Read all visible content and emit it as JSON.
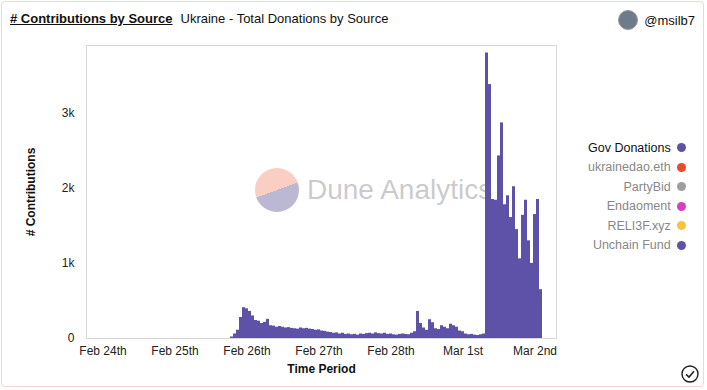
{
  "chart_data": {
    "type": "bar",
    "title": "# Contributions by Source",
    "subtitle": "Ukraine - Total Donations by Source",
    "author": "@msilb7",
    "watermark": "Dune Analytics",
    "x_label": "Time Period",
    "y_label": "# Contributions",
    "stacked": true,
    "grid": false,
    "legend": "right",
    "ylim": [
      0,
      3900
    ],
    "yticks": [
      0,
      {
        "value": 1000,
        "label": "1k"
      },
      {
        "value": 2000,
        "label": "2k"
      },
      {
        "value": 3000,
        "label": "3k"
      }
    ],
    "categories": [
      "Feb 24th",
      null,
      null,
      null,
      null,
      null,
      null,
      null,
      null,
      null,
      null,
      null,
      null,
      null,
      null,
      null,
      null,
      null,
      null,
      null,
      null,
      null,
      null,
      null,
      "Feb 25th",
      null,
      null,
      null,
      null,
      null,
      null,
      null,
      null,
      null,
      null,
      null,
      null,
      null,
      null,
      null,
      null,
      null,
      null,
      null,
      null,
      null,
      null,
      null,
      "Feb 26th",
      null,
      null,
      null,
      null,
      null,
      null,
      null,
      null,
      null,
      null,
      null,
      null,
      null,
      null,
      null,
      null,
      null,
      null,
      null,
      null,
      null,
      null,
      null,
      "Feb 27th",
      null,
      null,
      null,
      null,
      null,
      null,
      null,
      null,
      null,
      null,
      null,
      null,
      null,
      null,
      null,
      null,
      null,
      null,
      null,
      null,
      null,
      null,
      null,
      "Feb 28th",
      null,
      null,
      null,
      null,
      null,
      null,
      null,
      null,
      null,
      null,
      null,
      null,
      null,
      null,
      null,
      null,
      null,
      null,
      null,
      null,
      null,
      null,
      null,
      "Mar 1st",
      null,
      null,
      null,
      null,
      null,
      null,
      null,
      null,
      null,
      null,
      null,
      null,
      null,
      null,
      null,
      null,
      null,
      null,
      null,
      null,
      null,
      null,
      null,
      "Mar 2nd",
      null,
      null
    ],
    "series": [
      {
        "name": "Gov Donations",
        "color": "#5e52a8",
        "values": [
          null,
          null,
          null,
          null,
          null,
          null,
          null,
          null,
          null,
          null,
          null,
          null,
          null,
          null,
          null,
          null,
          null,
          null,
          null,
          null,
          null,
          null,
          null,
          null,
          null,
          null,
          null,
          null,
          null,
          null,
          null,
          null,
          null,
          null,
          null,
          null,
          null,
          null,
          null,
          null,
          null,
          null,
          null,
          20,
          60,
          110,
          280,
          410,
          395,
          360,
          300,
          240,
          230,
          200,
          215,
          255,
          170,
          165,
          150,
          160,
          150,
          140,
          145,
          135,
          130,
          125,
          140,
          130,
          135,
          125,
          120,
          110,
          115,
          100,
          95,
          85,
          80,
          70,
          75,
          60,
          70,
          55,
          60,
          50,
          55,
          45,
          60,
          55,
          65,
          70,
          60,
          75,
          65,
          60,
          70,
          55,
          60,
          50,
          45,
          55,
          60,
          55,
          50,
          70,
          90,
          360,
          200,
          140,
          110,
          250,
          210,
          130,
          120,
          170,
          150,
          130,
          190,
          170,
          150,
          100,
          90,
          60,
          50,
          55,
          45,
          40,
          50,
          60,
          3800,
          3380,
          1850,
          1840,
          2430,
          2870,
          1780,
          1900,
          1610,
          2020,
          1450,
          1060,
          1640,
          1840,
          1300,
          1000,
          1650,
          1850,
          650
        ]
      },
      {
        "name": "ukrainedao.eth",
        "color": "#ea4a2e",
        "values": [
          null,
          null,
          null,
          null,
          null,
          null,
          null,
          null,
          null,
          null,
          null,
          null,
          null,
          null,
          null,
          null,
          null,
          null,
          null,
          null,
          null,
          null,
          null,
          null,
          null,
          null,
          null,
          null,
          null,
          null,
          null,
          null,
          null,
          null,
          null,
          null,
          null,
          null,
          null,
          null,
          null,
          null,
          null,
          null,
          null,
          null,
          null,
          null,
          null,
          null,
          null,
          null,
          null,
          null,
          null,
          null,
          null,
          null,
          null,
          null,
          null,
          null,
          null,
          null,
          null,
          null,
          null,
          null,
          null,
          null,
          null,
          null,
          null,
          null,
          null,
          null,
          null,
          null,
          null,
          null,
          null,
          null,
          null,
          null,
          null,
          null,
          null,
          null,
          null,
          null,
          null,
          null,
          null,
          null,
          null,
          null,
          null,
          null,
          null,
          null,
          null,
          null,
          null,
          null,
          null,
          null,
          null,
          null,
          null,
          null,
          null,
          null,
          null,
          null,
          null,
          null,
          null,
          null,
          null,
          null,
          null,
          null,
          null,
          null,
          null,
          null,
          null,
          null,
          null,
          null,
          null,
          null,
          null,
          null,
          null,
          null,
          null,
          null,
          null,
          null,
          null,
          null,
          null,
          null,
          null,
          null,
          null
        ]
      },
      {
        "name": "PartyBid",
        "color": "#9e9e9e",
        "values": [
          null,
          null,
          null,
          null,
          null,
          null,
          null,
          null,
          null,
          null,
          null,
          null,
          null,
          null,
          null,
          null,
          null,
          null,
          null,
          null,
          null,
          null,
          null,
          null,
          null,
          null,
          null,
          null,
          null,
          null,
          null,
          null,
          null,
          null,
          null,
          null,
          null,
          null,
          null,
          null,
          null,
          null,
          null,
          null,
          null,
          null,
          null,
          null,
          null,
          null,
          null,
          null,
          null,
          null,
          null,
          null,
          null,
          null,
          null,
          null,
          null,
          null,
          null,
          null,
          null,
          null,
          null,
          null,
          null,
          null,
          null,
          null,
          null,
          null,
          null,
          null,
          null,
          null,
          null,
          null,
          null,
          null,
          null,
          null,
          null,
          null,
          null,
          null,
          null,
          null,
          null,
          null,
          null,
          null,
          null,
          null,
          null,
          null,
          null,
          null,
          null,
          null,
          null,
          null,
          null,
          null,
          null,
          null,
          null,
          null,
          null,
          null,
          null,
          null,
          null,
          null,
          null,
          null,
          null,
          null,
          null,
          null,
          null,
          null,
          null,
          null,
          null,
          null,
          null,
          null,
          null,
          null,
          null,
          null,
          null,
          null,
          null,
          null,
          null,
          null,
          null,
          null,
          null,
          null,
          null,
          null,
          null
        ]
      },
      {
        "name": "Endaoment",
        "color": "#d83fbd",
        "values": [
          null,
          null,
          null,
          null,
          null,
          null,
          null,
          null,
          null,
          null,
          null,
          null,
          null,
          null,
          null,
          null,
          null,
          null,
          null,
          null,
          null,
          null,
          null,
          null,
          null,
          null,
          null,
          null,
          null,
          null,
          null,
          null,
          null,
          null,
          null,
          null,
          null,
          null,
          null,
          null,
          null,
          null,
          null,
          null,
          null,
          null,
          null,
          null,
          null,
          null,
          null,
          null,
          null,
          null,
          null,
          null,
          null,
          null,
          null,
          null,
          null,
          null,
          null,
          null,
          null,
          null,
          null,
          null,
          null,
          null,
          null,
          null,
          null,
          null,
          null,
          null,
          null,
          null,
          null,
          null,
          null,
          null,
          null,
          null,
          null,
          null,
          null,
          null,
          null,
          null,
          null,
          null,
          null,
          null,
          null,
          null,
          null,
          null,
          null,
          null,
          null,
          null,
          null,
          null,
          null,
          null,
          null,
          null,
          null,
          null,
          null,
          null,
          null,
          null,
          null,
          null,
          null,
          null,
          null,
          null,
          null,
          null,
          null,
          null,
          null,
          null,
          null,
          null,
          null,
          null,
          null,
          null,
          null,
          null,
          null,
          null,
          null,
          null,
          null,
          null,
          null,
          null,
          null,
          null,
          null,
          null,
          null
        ]
      },
      {
        "name": "RELI3F.xyz",
        "color": "#f4c340",
        "values": [
          null,
          null,
          null,
          null,
          null,
          null,
          null,
          null,
          null,
          null,
          null,
          null,
          null,
          null,
          null,
          null,
          null,
          null,
          null,
          null,
          null,
          null,
          null,
          null,
          null,
          null,
          null,
          null,
          null,
          null,
          null,
          null,
          null,
          null,
          null,
          null,
          null,
          null,
          null,
          null,
          null,
          null,
          null,
          null,
          null,
          null,
          null,
          null,
          null,
          null,
          null,
          null,
          null,
          null,
          null,
          null,
          null,
          null,
          null,
          null,
          null,
          null,
          null,
          null,
          null,
          null,
          null,
          null,
          null,
          null,
          null,
          null,
          null,
          null,
          null,
          null,
          null,
          null,
          null,
          null,
          null,
          null,
          null,
          null,
          null,
          null,
          null,
          null,
          null,
          null,
          null,
          null,
          null,
          null,
          null,
          null,
          null,
          null,
          null,
          null,
          null,
          null,
          null,
          null,
          null,
          null,
          null,
          null,
          null,
          null,
          null,
          null,
          null,
          null,
          null,
          null,
          null,
          null,
          null,
          null,
          null,
          null,
          null,
          null,
          null,
          null,
          null,
          null,
          null,
          null,
          null,
          null,
          null,
          null,
          null,
          null,
          null,
          null,
          null,
          null,
          null,
          null,
          null,
          null,
          null,
          null,
          null
        ]
      },
      {
        "name": "Unchain Fund",
        "color": "#5e52a8",
        "values": [
          null,
          null,
          null,
          null,
          null,
          null,
          null,
          null,
          null,
          null,
          null,
          null,
          null,
          null,
          null,
          null,
          null,
          null,
          null,
          null,
          null,
          null,
          null,
          null,
          null,
          null,
          null,
          null,
          null,
          null,
          null,
          null,
          null,
          null,
          null,
          null,
          null,
          null,
          null,
          null,
          null,
          null,
          null,
          null,
          null,
          null,
          null,
          null,
          null,
          null,
          null,
          null,
          null,
          null,
          null,
          null,
          null,
          null,
          null,
          null,
          null,
          null,
          null,
          null,
          null,
          null,
          null,
          null,
          null,
          null,
          null,
          null,
          null,
          null,
          null,
          null,
          null,
          null,
          null,
          null,
          null,
          null,
          null,
          null,
          null,
          null,
          null,
          null,
          null,
          null,
          null,
          null,
          null,
          null,
          null,
          null,
          null,
          null,
          null,
          null,
          null,
          null,
          null,
          null,
          null,
          null,
          null,
          null,
          null,
          null,
          null,
          null,
          null,
          null,
          null,
          null,
          null,
          null,
          null,
          null,
          null,
          null,
          null,
          null,
          null,
          null,
          null,
          null,
          null,
          null,
          null,
          null,
          null,
          null,
          null,
          null,
          null,
          null,
          null,
          null,
          null,
          null,
          null,
          null,
          null,
          null,
          null
        ]
      }
    ]
  }
}
